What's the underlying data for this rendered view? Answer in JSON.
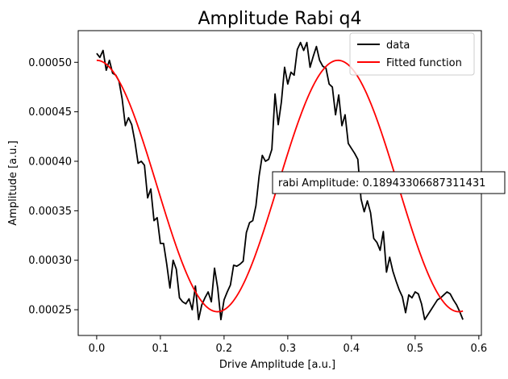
{
  "chart_data": {
    "type": "line",
    "title": "Amplitude Rabi q4",
    "xlabel": "Drive Amplitude [a.u.]",
    "ylabel": "Amplitude [a.u.]",
    "xlim": [
      -0.029,
      0.604
    ],
    "ylim": [
      0.000224,
      0.000532
    ],
    "xticks": [
      0.0,
      0.1,
      0.2,
      0.3,
      0.4,
      0.5,
      0.6
    ],
    "xtick_labels": [
      "0.0",
      "0.1",
      "0.2",
      "0.3",
      "0.4",
      "0.5",
      "0.6"
    ],
    "yticks": [
      0.00025,
      0.0003,
      0.00035,
      0.0004,
      0.00045,
      0.0005
    ],
    "ytick_labels": [
      "0.00025",
      "0.00030",
      "0.00035",
      "0.00040",
      "0.00045",
      "0.00050"
    ],
    "grid": false,
    "legend_position": "top-right",
    "annotation": "rabi Amplitude: 0.18943306687311431",
    "series": [
      {
        "name": "data",
        "color": "#000000",
        "x": [
          0.0,
          0.005,
          0.01,
          0.015,
          0.02,
          0.025,
          0.03,
          0.035,
          0.04,
          0.045,
          0.05,
          0.055,
          0.06,
          0.065,
          0.07,
          0.075,
          0.08,
          0.085,
          0.09,
          0.095,
          0.1,
          0.105,
          0.11,
          0.115,
          0.12,
          0.125,
          0.13,
          0.135,
          0.14,
          0.145,
          0.15,
          0.155,
          0.16,
          0.165,
          0.17,
          0.175,
          0.18,
          0.185,
          0.19,
          0.195,
          0.2,
          0.205,
          0.21,
          0.215,
          0.22,
          0.225,
          0.23,
          0.235,
          0.24,
          0.245,
          0.25,
          0.255,
          0.26,
          0.265,
          0.27,
          0.275,
          0.28,
          0.285,
          0.29,
          0.295,
          0.3,
          0.305,
          0.31,
          0.315,
          0.32,
          0.325,
          0.33,
          0.335,
          0.34,
          0.345,
          0.35,
          0.355,
          0.36,
          0.365,
          0.37,
          0.375,
          0.38,
          0.385,
          0.39,
          0.395,
          0.4,
          0.405,
          0.41,
          0.415,
          0.42,
          0.425,
          0.43,
          0.435,
          0.44,
          0.445,
          0.45,
          0.455,
          0.46,
          0.465,
          0.47,
          0.475,
          0.48,
          0.485,
          0.49,
          0.495,
          0.5,
          0.505,
          0.51,
          0.515,
          0.52,
          0.525,
          0.53,
          0.535,
          0.54,
          0.545,
          0.55,
          0.555,
          0.56,
          0.565,
          0.57,
          0.575
        ],
        "y": [
          0.000509,
          0.000505,
          0.000512,
          0.000492,
          0.000502,
          0.000489,
          0.000487,
          0.000481,
          0.000463,
          0.000436,
          0.000444,
          0.000437,
          0.00042,
          0.000398,
          0.0004,
          0.000396,
          0.000363,
          0.000372,
          0.00034,
          0.000343,
          0.000317,
          0.000317,
          0.000296,
          0.000272,
          0.0003,
          0.000291,
          0.000262,
          0.000258,
          0.000256,
          0.000261,
          0.00025,
          0.000274,
          0.00024,
          0.000255,
          0.000262,
          0.000268,
          0.000258,
          0.000292,
          0.000272,
          0.00024,
          0.00026,
          0.000268,
          0.000275,
          0.000295,
          0.000294,
          0.000296,
          0.000299,
          0.000328,
          0.000338,
          0.00034,
          0.000355,
          0.000385,
          0.000406,
          0.0004,
          0.000402,
          0.000412,
          0.000468,
          0.000437,
          0.00046,
          0.000495,
          0.000478,
          0.00049,
          0.000487,
          0.000513,
          0.00052,
          0.000512,
          0.00052,
          0.000495,
          0.000506,
          0.000516,
          0.000502,
          0.000496,
          0.000494,
          0.000478,
          0.000475,
          0.000447,
          0.000467,
          0.000436,
          0.000447,
          0.000418,
          0.000413,
          0.000408,
          0.000402,
          0.000362,
          0.000349,
          0.00036,
          0.000348,
          0.000322,
          0.000318,
          0.00031,
          0.000329,
          0.000288,
          0.000303,
          0.000289,
          0.000279,
          0.00027,
          0.000263,
          0.000247,
          0.000265,
          0.000262,
          0.000268,
          0.000266,
          0.000256,
          0.00024,
          0.000245,
          0.00025,
          0.000255,
          0.00026,
          0.000262,
          0.000265,
          0.000268,
          0.000266,
          0.00026,
          0.000255,
          0.000248,
          0.00024
        ]
      },
      {
        "name": "Fitted function",
        "color": "#ff0000",
        "fit": {
          "offset": 0.000375,
          "amplitude": 0.000127,
          "period": 0.3789,
          "x_start": 0.0,
          "x_end": 0.575
        }
      }
    ]
  }
}
